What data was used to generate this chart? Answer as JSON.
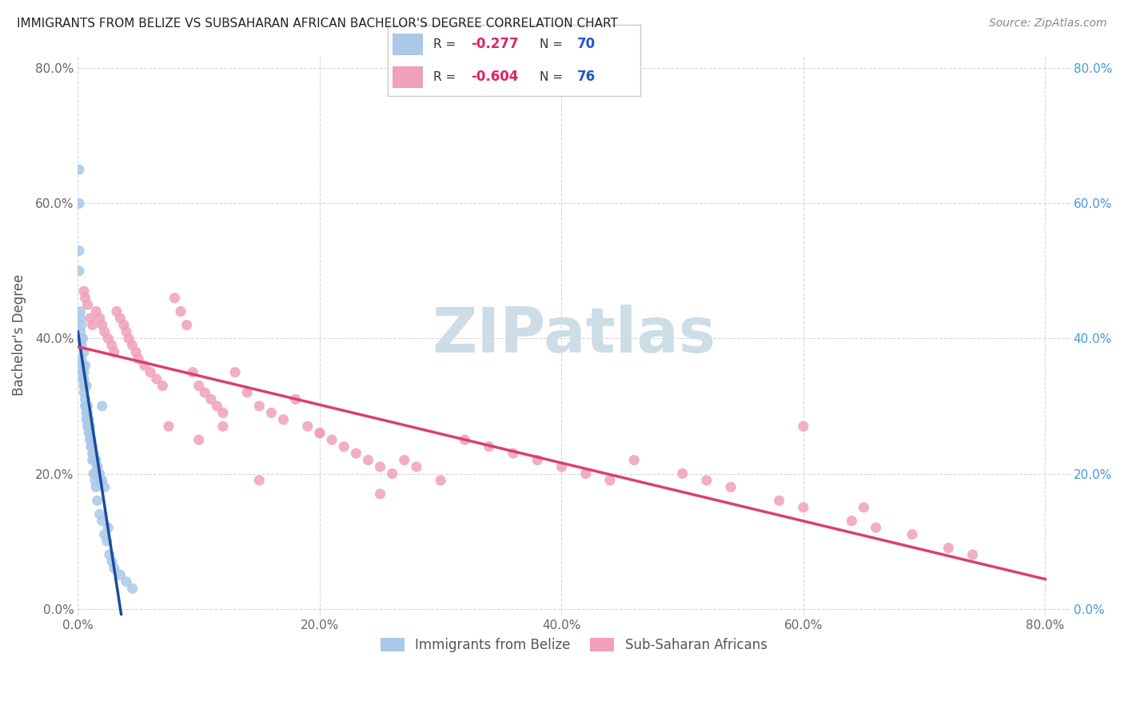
{
  "title": "IMMIGRANTS FROM BELIZE VS SUBSAHARAN AFRICAN BACHELOR'S DEGREE CORRELATION CHART",
  "source": "Source: ZipAtlas.com",
  "ylabel": "Bachelor's Degree",
  "belize_R": "-0.277",
  "belize_N": "70",
  "subsaharan_R": "-0.604",
  "subsaharan_N": "76",
  "xlim": [
    0.0,
    0.82
  ],
  "ylim": [
    -0.01,
    0.82
  ],
  "xtick_vals": [
    0.0,
    0.2,
    0.4,
    0.6,
    0.8
  ],
  "xtick_labels": [
    "0.0%",
    "20.0%",
    "40.0%",
    "60.0%",
    "80.0%"
  ],
  "ytick_vals": [
    0.0,
    0.2,
    0.4,
    0.6,
    0.8
  ],
  "ytick_labels": [
    "0.0%",
    "20.0%",
    "40.0%",
    "60.0%",
    "80.0%"
  ],
  "belize_color": "#aac8e8",
  "subsaharan_color": "#f0a0b8",
  "belize_line_color": "#1a4d9e",
  "subsaharan_line_color": "#d94070",
  "belize_x": [
    0.001,
    0.001,
    0.001,
    0.001,
    0.002,
    0.002,
    0.002,
    0.003,
    0.003,
    0.003,
    0.004,
    0.004,
    0.004,
    0.005,
    0.005,
    0.005,
    0.006,
    0.006,
    0.007,
    0.007,
    0.007,
    0.008,
    0.008,
    0.009,
    0.009,
    0.01,
    0.01,
    0.011,
    0.011,
    0.012,
    0.012,
    0.013,
    0.014,
    0.015,
    0.016,
    0.016,
    0.018,
    0.019,
    0.02,
    0.022,
    0.025,
    0.003,
    0.004,
    0.005,
    0.006,
    0.007,
    0.008,
    0.009,
    0.01,
    0.011,
    0.012,
    0.013,
    0.014,
    0.015,
    0.016,
    0.018,
    0.02,
    0.022,
    0.024,
    0.026,
    0.028,
    0.03,
    0.035,
    0.04,
    0.045,
    0.02,
    0.005,
    0.006,
    0.008,
    0.015
  ],
  "belize_y": [
    0.65,
    0.6,
    0.53,
    0.5,
    0.44,
    0.43,
    0.41,
    0.4,
    0.39,
    0.37,
    0.36,
    0.35,
    0.34,
    0.34,
    0.33,
    0.32,
    0.31,
    0.3,
    0.3,
    0.29,
    0.28,
    0.29,
    0.28,
    0.27,
    0.26,
    0.27,
    0.25,
    0.25,
    0.24,
    0.24,
    0.23,
    0.23,
    0.22,
    0.22,
    0.21,
    0.21,
    0.2,
    0.19,
    0.19,
    0.18,
    0.12,
    0.42,
    0.4,
    0.38,
    0.36,
    0.33,
    0.3,
    0.28,
    0.26,
    0.24,
    0.22,
    0.2,
    0.19,
    0.18,
    0.16,
    0.14,
    0.13,
    0.11,
    0.1,
    0.08,
    0.07,
    0.06,
    0.05,
    0.04,
    0.03,
    0.3,
    0.35,
    0.33,
    0.27,
    0.2
  ],
  "subsaharan_x": [
    0.005,
    0.006,
    0.008,
    0.01,
    0.012,
    0.015,
    0.018,
    0.02,
    0.022,
    0.025,
    0.028,
    0.03,
    0.032,
    0.035,
    0.038,
    0.04,
    0.042,
    0.045,
    0.048,
    0.05,
    0.055,
    0.06,
    0.065,
    0.07,
    0.08,
    0.085,
    0.09,
    0.095,
    0.1,
    0.105,
    0.11,
    0.115,
    0.12,
    0.13,
    0.14,
    0.15,
    0.16,
    0.17,
    0.18,
    0.19,
    0.2,
    0.21,
    0.22,
    0.23,
    0.24,
    0.25,
    0.26,
    0.27,
    0.28,
    0.3,
    0.32,
    0.34,
    0.36,
    0.38,
    0.4,
    0.42,
    0.44,
    0.46,
    0.5,
    0.52,
    0.54,
    0.58,
    0.6,
    0.64,
    0.66,
    0.69,
    0.72,
    0.74,
    0.075,
    0.1,
    0.12,
    0.15,
    0.2,
    0.25,
    0.6,
    0.65
  ],
  "subsaharan_y": [
    0.47,
    0.46,
    0.45,
    0.43,
    0.42,
    0.44,
    0.43,
    0.42,
    0.41,
    0.4,
    0.39,
    0.38,
    0.44,
    0.43,
    0.42,
    0.41,
    0.4,
    0.39,
    0.38,
    0.37,
    0.36,
    0.35,
    0.34,
    0.33,
    0.46,
    0.44,
    0.42,
    0.35,
    0.33,
    0.32,
    0.31,
    0.3,
    0.29,
    0.35,
    0.32,
    0.3,
    0.29,
    0.28,
    0.31,
    0.27,
    0.26,
    0.25,
    0.24,
    0.23,
    0.22,
    0.21,
    0.2,
    0.22,
    0.21,
    0.19,
    0.25,
    0.24,
    0.23,
    0.22,
    0.21,
    0.2,
    0.19,
    0.22,
    0.2,
    0.19,
    0.18,
    0.16,
    0.15,
    0.13,
    0.12,
    0.11,
    0.09,
    0.08,
    0.27,
    0.25,
    0.27,
    0.19,
    0.26,
    0.17,
    0.27,
    0.15
  ],
  "background_color": "#ffffff",
  "grid_color": "#cccccc",
  "title_color": "#222222",
  "right_tick_color": "#4499dd",
  "left_tick_color": "#666666",
  "watermark_color": "#ccdde8",
  "legend_R_color": "#dd2266",
  "legend_N_color": "#2255cc",
  "legend_text_color": "#333333"
}
